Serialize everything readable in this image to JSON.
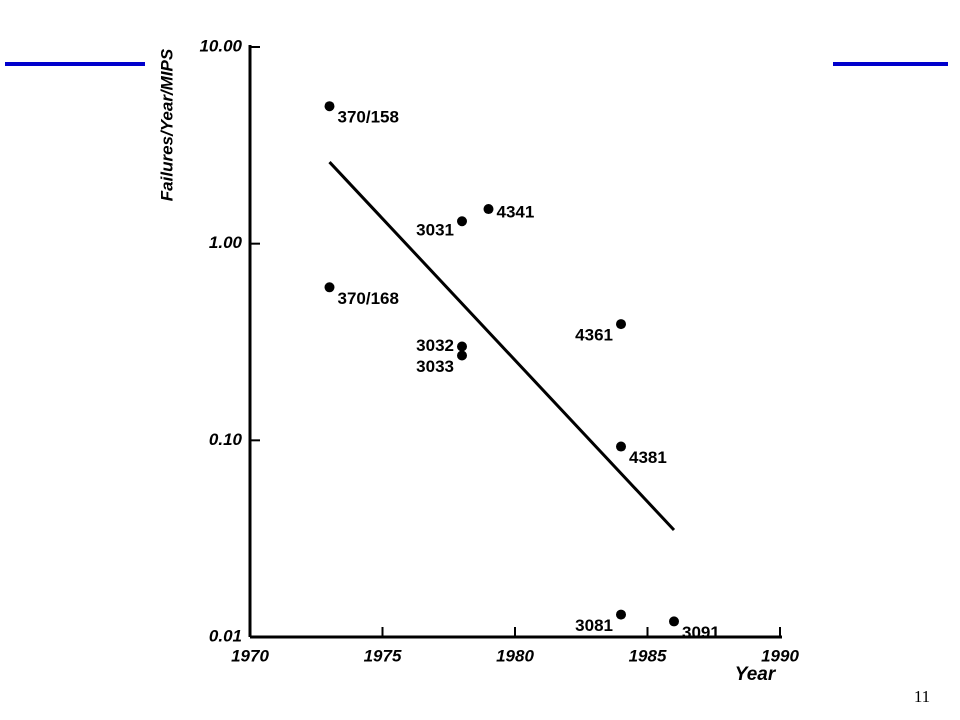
{
  "chart_data": {
    "type": "scatter",
    "x_label": "Year",
    "y_label": "Failures/Year/MIPS",
    "xlim": [
      1970,
      1990
    ],
    "xticks": [
      1970,
      1975,
      1980,
      1985,
      1990
    ],
    "ylim": [
      0.01,
      10
    ],
    "log_y": true,
    "yticks": [
      0.01,
      {
        "value": 0.1,
        "label": "0.10"
      },
      {
        "value": 1,
        "label": "1.00"
      },
      {
        "value": 10,
        "label": "10.00"
      }
    ],
    "series": [
      {
        "color": "#000000",
        "labels": [
          "370/158",
          "3031",
          "4341",
          "370/168",
          "3032",
          "3033",
          "4361",
          "4381",
          "3081",
          "3091"
        ],
        "x": [
          1973,
          1978,
          1979,
          1973,
          1978,
          1978,
          1984,
          1984,
          1984,
          1986
        ],
        "values": [
          5.0,
          1.3,
          1.5,
          0.6,
          0.3,
          0.27,
          0.39,
          0.093,
          0.013,
          0.012
        ]
      }
    ],
    "trend": {
      "color": "#000000",
      "x": [
        1973,
        1986
      ],
      "values": [
        2.6,
        0.035
      ]
    }
  },
  "page_number": "11"
}
